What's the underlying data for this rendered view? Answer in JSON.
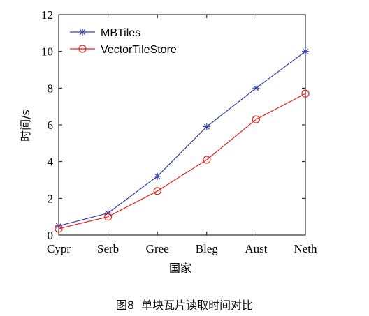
{
  "caption": "图8  单块瓦片读取时间对比",
  "colors": {
    "mbtiles": "#3645a8",
    "vectortilestore": "#e8231c",
    "axis": "#000000"
  },
  "chart_data": {
    "type": "line",
    "title": "",
    "xlabel": "国家",
    "ylabel": "时间/s",
    "categories": [
      "Cypr",
      "Serb",
      "Gree",
      "Bleg",
      "Aust",
      "Neth"
    ],
    "ylim": [
      0,
      12
    ],
    "yticks": [
      0,
      2,
      4,
      6,
      8,
      10,
      12
    ],
    "grid": false,
    "legend_position": "top-left",
    "series": [
      {
        "name": "MBTiles",
        "marker": "asterisk",
        "color": "#3645a8",
        "values": [
          0.5,
          1.2,
          3.2,
          5.9,
          8.0,
          10.0
        ]
      },
      {
        "name": "VectorTileStore",
        "marker": "circle",
        "color": "#e8231c",
        "values": [
          0.35,
          1.0,
          2.4,
          4.1,
          6.3,
          7.7
        ]
      }
    ]
  }
}
